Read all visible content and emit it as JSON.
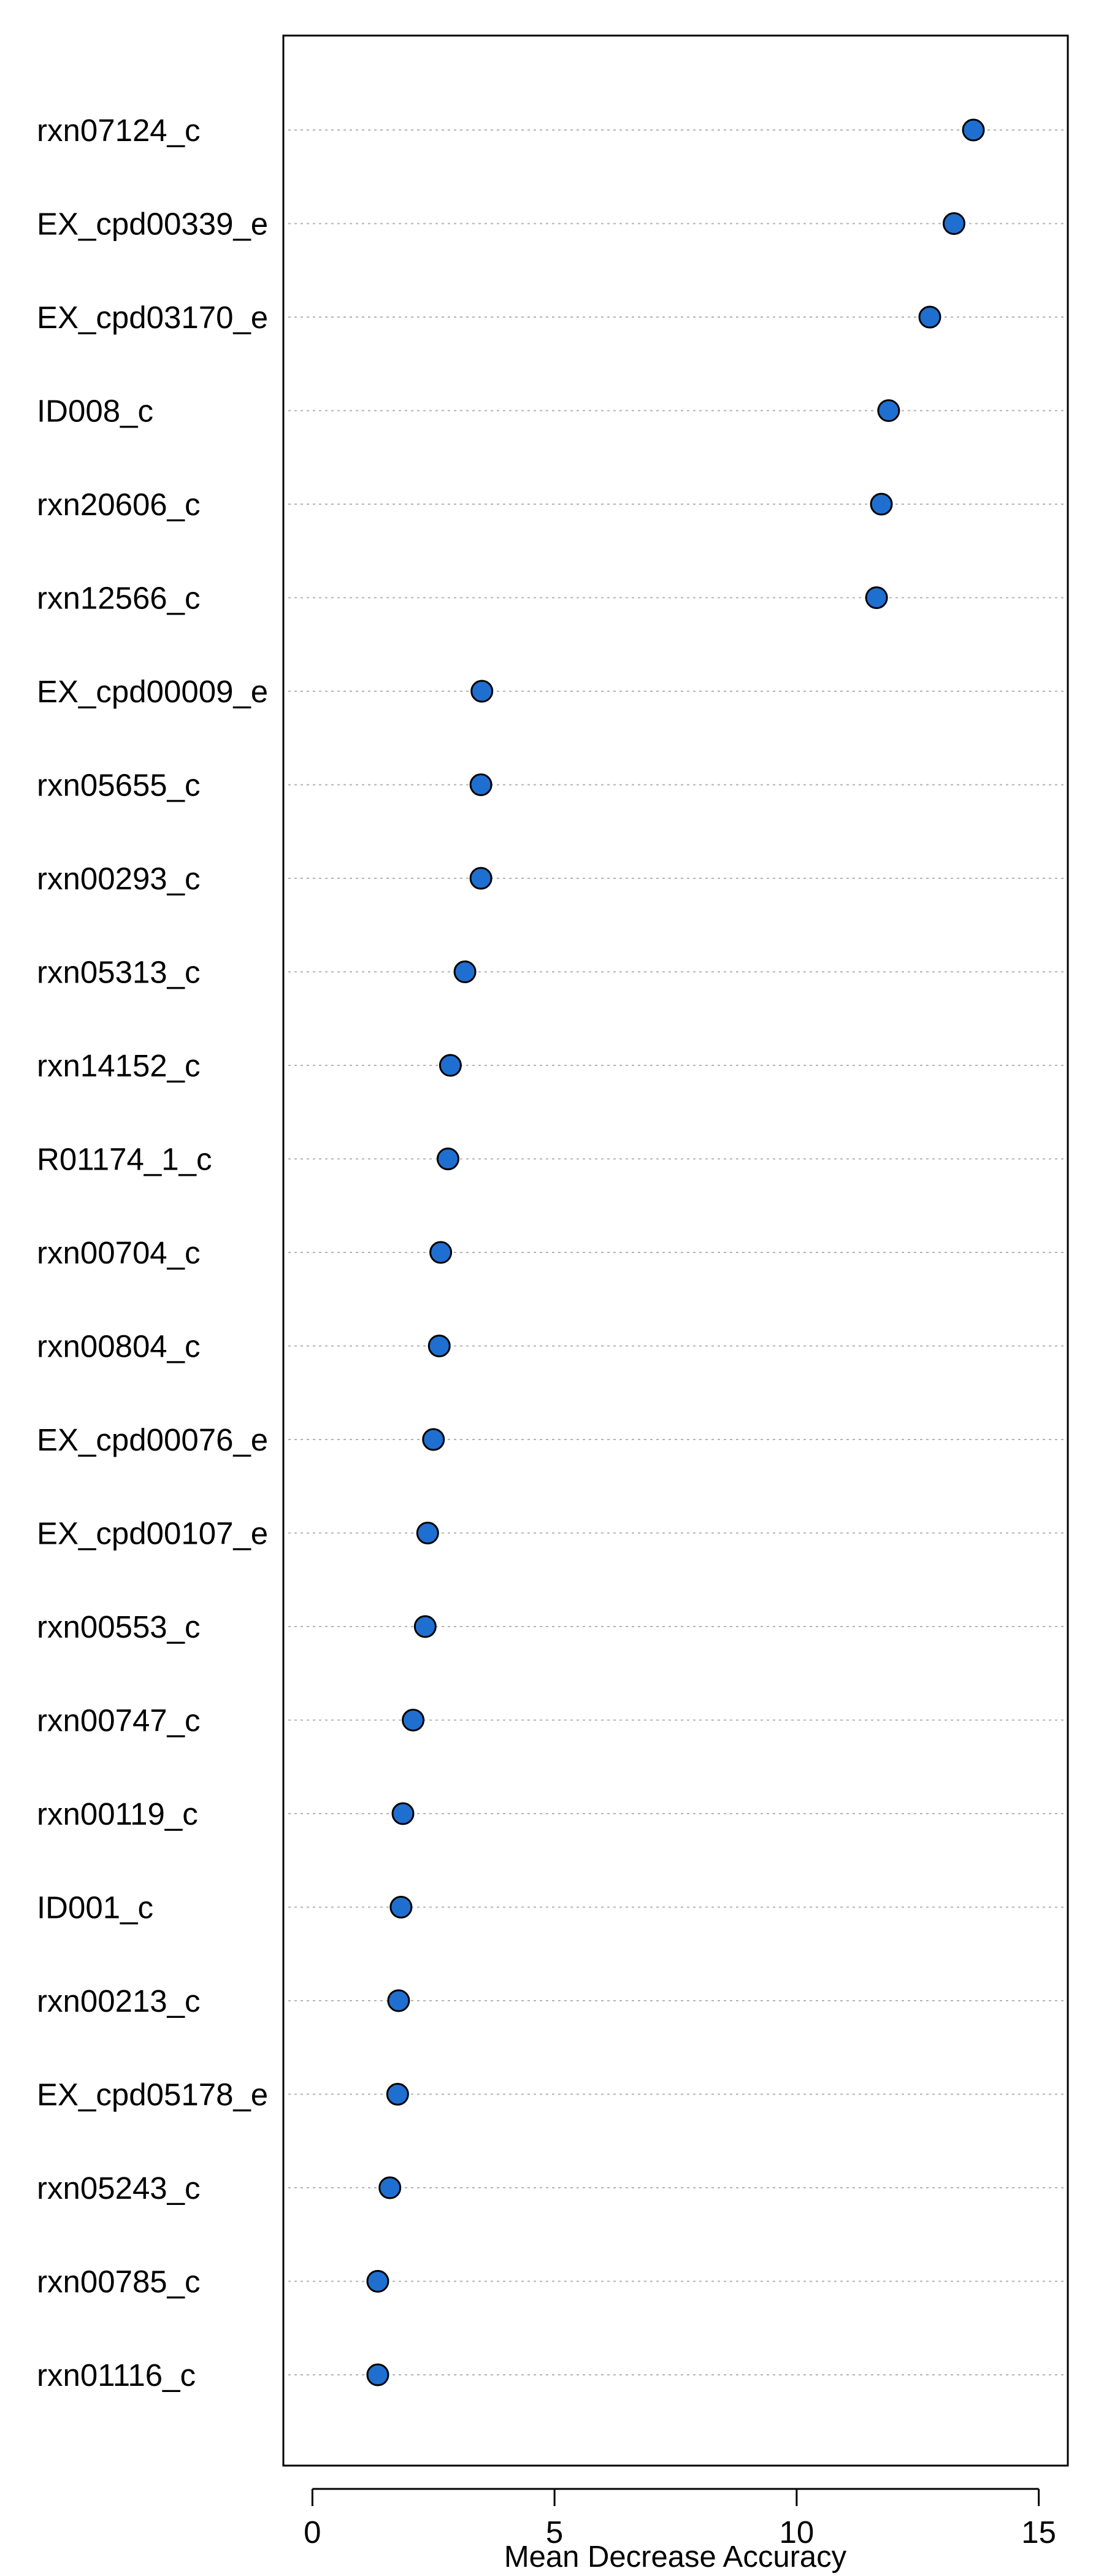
{
  "chart_data": {
    "type": "scatter",
    "title": "",
    "xlabel": "Mean Decrease Accuracy",
    "ylabel": "",
    "xlim": [
      -0.6,
      15.6
    ],
    "xticks": [
      0,
      5,
      10,
      15
    ],
    "grid": "horizontal-dotted",
    "legend": "none",
    "marker_color": "#1F6FD1",
    "marker_edge": "#000000",
    "categories": [
      "rxn07124_c",
      "EX_cpd00339_e",
      "EX_cpd03170_e",
      "ID008_c",
      "rxn20606_c",
      "rxn12566_c",
      "EX_cpd00009_e",
      "rxn05655_c",
      "rxn00293_c",
      "rxn05313_c",
      "rxn14152_c",
      "R01174_1_c",
      "rxn00704_c",
      "rxn00804_c",
      "EX_cpd00076_e",
      "EX_cpd00107_e",
      "rxn00553_c",
      "rxn00747_c",
      "rxn00119_c",
      "ID001_c",
      "rxn00213_c",
      "EX_cpd05178_e",
      "rxn05243_c",
      "rxn00785_c",
      "rxn01116_c"
    ],
    "values": [
      13.65,
      13.25,
      12.75,
      11.9,
      11.75,
      11.65,
      3.5,
      3.48,
      3.48,
      3.15,
      2.85,
      2.8,
      2.65,
      2.62,
      2.5,
      2.38,
      2.33,
      2.08,
      1.87,
      1.83,
      1.78,
      1.76,
      1.6,
      1.35,
      1.35
    ]
  }
}
